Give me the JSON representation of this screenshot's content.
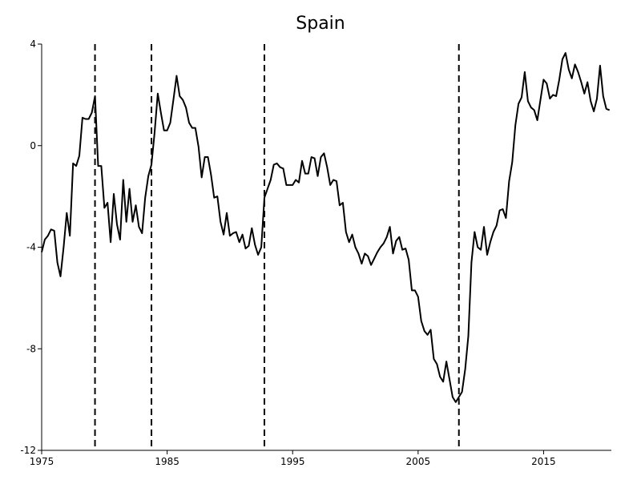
{
  "chart_data": {
    "type": "line",
    "title": "Spain",
    "xlabel": "",
    "ylabel": "",
    "xlim": [
      1975,
      2020.4
    ],
    "ylim": [
      -12,
      4
    ],
    "x_ticks": [
      1975,
      1985,
      1995,
      2005,
      2015
    ],
    "y_ticks": [
      4,
      0,
      -4,
      -8,
      -12
    ],
    "grid": false,
    "legend": "none",
    "vertical_lines": [
      1979.25,
      1983.75,
      1992.75,
      2008.25
    ],
    "series": [
      {
        "color": "#000000",
        "x": [
          1975.0,
          1975.25,
          1975.5,
          1975.75,
          1976.0,
          1976.25,
          1976.5,
          1976.75,
          1977.0,
          1977.25,
          1977.5,
          1977.75,
          1978.0,
          1978.25,
          1978.5,
          1978.75,
          1979.0,
          1979.25,
          1979.5,
          1979.75,
          1980.0,
          1980.25,
          1980.5,
          1980.75,
          1981.0,
          1981.25,
          1981.5,
          1981.75,
          1982.0,
          1982.25,
          1982.5,
          1982.75,
          1983.0,
          1983.25,
          1983.5,
          1983.75,
          1984.0,
          1984.25,
          1984.5,
          1984.75,
          1985.0,
          1985.25,
          1985.5,
          1985.75,
          1986.0,
          1986.25,
          1986.5,
          1986.75,
          1987.0,
          1987.25,
          1987.5,
          1987.75,
          1988.0,
          1988.25,
          1988.5,
          1988.75,
          1989.0,
          1989.25,
          1989.5,
          1989.75,
          1990.0,
          1990.25,
          1990.5,
          1990.75,
          1991.0,
          1991.25,
          1991.5,
          1991.75,
          1992.0,
          1992.25,
          1992.5,
          1992.75,
          1993.0,
          1993.25,
          1993.5,
          1993.75,
          1994.0,
          1994.25,
          1994.5,
          1994.75,
          1995.0,
          1995.25,
          1995.5,
          1995.75,
          1996.0,
          1996.25,
          1996.5,
          1996.75,
          1997.0,
          1997.25,
          1997.5,
          1997.75,
          1998.0,
          1998.25,
          1998.5,
          1998.75,
          1999.0,
          1999.25,
          1999.5,
          1999.75,
          2000.0,
          2000.25,
          2000.5,
          2000.75,
          2001.0,
          2001.25,
          2001.5,
          2001.75,
          2002.0,
          2002.25,
          2002.5,
          2002.75,
          2003.0,
          2003.25,
          2003.5,
          2003.75,
          2004.0,
          2004.25,
          2004.5,
          2004.75,
          2005.0,
          2005.25,
          2005.5,
          2005.75,
          2006.0,
          2006.25,
          2006.5,
          2006.75,
          2007.0,
          2007.25,
          2007.5,
          2007.75,
          2008.0,
          2008.25,
          2008.5,
          2008.75,
          2009.0,
          2009.25,
          2009.5,
          2009.75,
          2010.0,
          2010.25,
          2010.5,
          2010.75,
          2011.0,
          2011.25,
          2011.5,
          2011.75,
          2012.0,
          2012.25,
          2012.5,
          2012.75,
          2013.0,
          2013.25,
          2013.5,
          2013.75,
          2014.0,
          2014.25,
          2014.5,
          2014.75,
          2015.0,
          2015.25,
          2015.5,
          2015.75,
          2016.0,
          2016.25,
          2016.5,
          2016.75,
          2017.0,
          2017.25,
          2017.5,
          2017.75,
          2018.0,
          2018.25,
          2018.5,
          2018.75,
          2019.0,
          2019.25,
          2019.5,
          2019.75,
          2020.0,
          2020.25
        ],
        "values": [
          -4.2,
          -3.7,
          -3.55,
          -3.3,
          -3.35,
          -4.6,
          -5.15,
          -4.0,
          -2.65,
          -3.55,
          -0.7,
          -0.8,
          -0.4,
          1.1,
          1.05,
          1.05,
          1.3,
          1.95,
          -0.8,
          -0.8,
          -2.45,
          -2.25,
          -3.8,
          -1.9,
          -3.1,
          -3.7,
          -1.35,
          -3.0,
          -1.7,
          -3.0,
          -2.35,
          -3.2,
          -3.45,
          -2.05,
          -1.2,
          -0.75,
          0.5,
          2.05,
          1.3,
          0.6,
          0.6,
          0.9,
          1.8,
          2.75,
          1.95,
          1.8,
          1.5,
          0.9,
          0.7,
          0.7,
          -0.05,
          -1.25,
          -0.45,
          -0.45,
          -1.15,
          -2.05,
          -2.0,
          -3.0,
          -3.5,
          -2.65,
          -3.55,
          -3.45,
          -3.4,
          -3.8,
          -3.5,
          -4.05,
          -3.95,
          -3.25,
          -3.9,
          -4.3,
          -4.0,
          -2.05,
          -1.7,
          -1.35,
          -0.75,
          -0.7,
          -0.85,
          -0.9,
          -1.55,
          -1.55,
          -1.55,
          -1.35,
          -1.45,
          -0.6,
          -1.1,
          -1.1,
          -0.45,
          -0.5,
          -1.2,
          -0.45,
          -0.3,
          -0.85,
          -1.55,
          -1.35,
          -1.4,
          -2.35,
          -2.25,
          -3.4,
          -3.8,
          -3.5,
          -4.0,
          -4.25,
          -4.65,
          -4.25,
          -4.35,
          -4.7,
          -4.45,
          -4.2,
          -4.0,
          -3.85,
          -3.6,
          -3.2,
          -4.25,
          -3.75,
          -3.6,
          -4.1,
          -4.05,
          -4.5,
          -5.7,
          -5.7,
          -5.95,
          -6.9,
          -7.3,
          -7.45,
          -7.25,
          -8.4,
          -8.6,
          -9.1,
          -9.3,
          -8.5,
          -9.2,
          -9.9,
          -10.1,
          -9.9,
          -9.7,
          -8.8,
          -7.5,
          -4.6,
          -3.4,
          -4.0,
          -4.1,
          -3.2,
          -4.3,
          -3.8,
          -3.4,
          -3.15,
          -2.55,
          -2.5,
          -2.85,
          -1.4,
          -0.65,
          0.8,
          1.65,
          1.9,
          2.9,
          1.75,
          1.5,
          1.4,
          1.0,
          1.8,
          2.6,
          2.45,
          1.85,
          2.0,
          1.95,
          2.6,
          3.4,
          3.65,
          3.0,
          2.65,
          3.2,
          2.9,
          2.5,
          2.05,
          2.5,
          1.75,
          1.35,
          1.85,
          3.15,
          1.95,
          1.45,
          1.4
        ]
      }
    ]
  }
}
